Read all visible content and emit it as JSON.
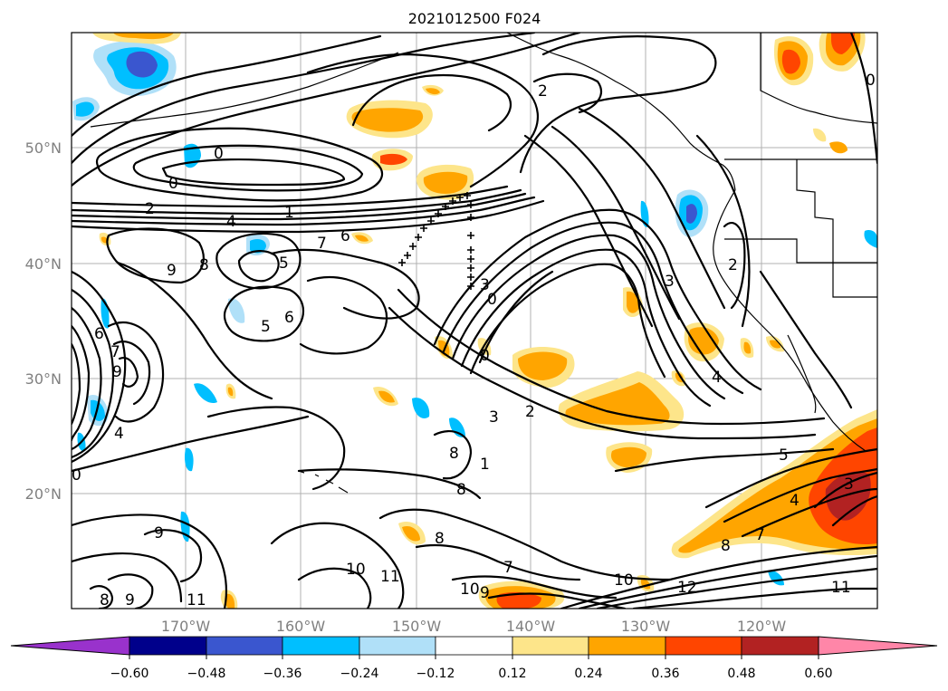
{
  "title": "2021012500 F024",
  "lat_labels": [
    "50°N",
    "40°N",
    "30°N",
    "20°N"
  ],
  "lon_labels": [
    "170°W",
    "160°W",
    "150°W",
    "140°W",
    "130°W",
    "120°W"
  ],
  "colorbar": {
    "ticks": [
      "−0.60",
      "−0.48",
      "−0.36",
      "−0.24",
      "−0.12",
      "0.12",
      "0.24",
      "0.36",
      "0.48",
      "0.60"
    ],
    "colors": [
      "#9932cc",
      "#00008b",
      "#3a56cf",
      "#00bfff",
      "#b0e0f8",
      "#ffffff",
      "#fde58a",
      "#ffa500",
      "#ff4500",
      "#b22222",
      "#ff86a8"
    ]
  },
  "contour_labels": [
    "0",
    "0",
    "2",
    "4",
    "1",
    "7",
    "6",
    "9",
    "8",
    "5",
    "5",
    "6",
    "6",
    "7",
    "9",
    "4",
    "0",
    "2",
    "3",
    "0",
    "3",
    "0",
    "2",
    "3",
    "4",
    "5",
    "3",
    "4",
    "7",
    "8",
    "10",
    "12",
    "11",
    "9",
    "9",
    "8",
    "10",
    "11",
    "11",
    "10",
    "7",
    "8",
    "8",
    "9",
    "8",
    "1",
    "0",
    "2"
  ],
  "shading_colors": {
    "dark_blue": "#3a56cf",
    "deep_navy": "#00008b",
    "blue": "#00bfff",
    "light_blue": "#b0e0f8",
    "light_yellow": "#fde58a",
    "orange": "#ffa500",
    "red_orange": "#ff4500",
    "dark_red": "#b22222"
  }
}
